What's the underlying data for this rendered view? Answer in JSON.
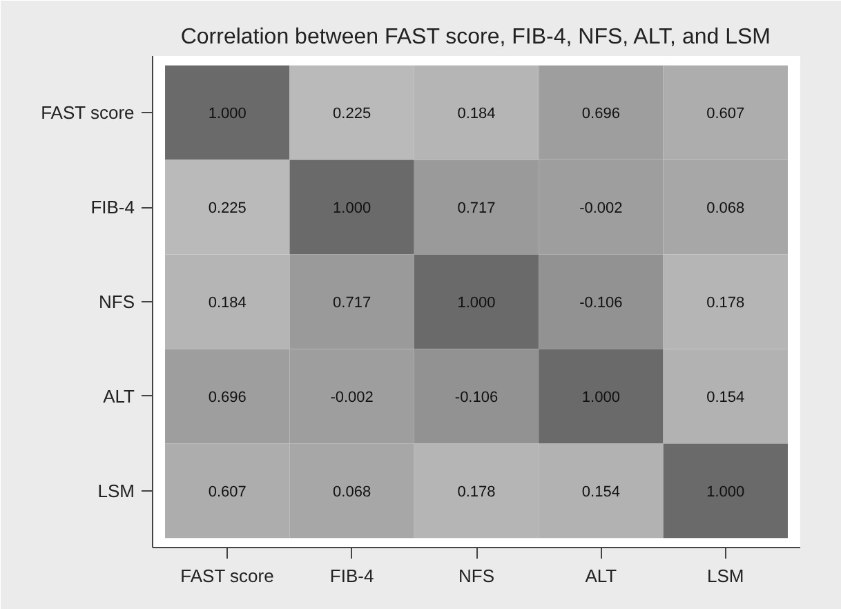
{
  "chart_data": {
    "type": "heatmap",
    "title": "Correlation between FAST score, FIB-4, NFS, ALT, and LSM",
    "categories": [
      "FAST score",
      "FIB-4",
      "NFS",
      "ALT",
      "LSM"
    ],
    "y_categories": [
      "FAST score",
      "FIB-4",
      "NFS",
      "ALT",
      "LSM"
    ],
    "cells": [
      [
        1.0,
        0.225,
        0.184,
        0.696,
        0.607
      ],
      [
        0.225,
        1.0,
        0.717,
        -0.002,
        0.068
      ],
      [
        0.184,
        0.717,
        1.0,
        -0.106,
        0.178
      ],
      [
        0.696,
        -0.002,
        -0.106,
        1.0,
        0.154
      ],
      [
        0.607,
        0.068,
        0.178,
        0.154,
        1.0
      ]
    ],
    "cell_labels": [
      [
        "1.000",
        "0.225",
        "0.184",
        "0.696",
        "0.607"
      ],
      [
        "0.225",
        "1.000",
        "0.717",
        "-0.002",
        "0.068"
      ],
      [
        "0.184",
        "0.717",
        "1.000",
        "-0.106",
        "0.178"
      ],
      [
        "0.696",
        "-0.002",
        "-0.106",
        "1.000",
        "0.154"
      ],
      [
        "0.607",
        "0.068",
        "0.178",
        "0.154",
        "1.000"
      ]
    ]
  }
}
